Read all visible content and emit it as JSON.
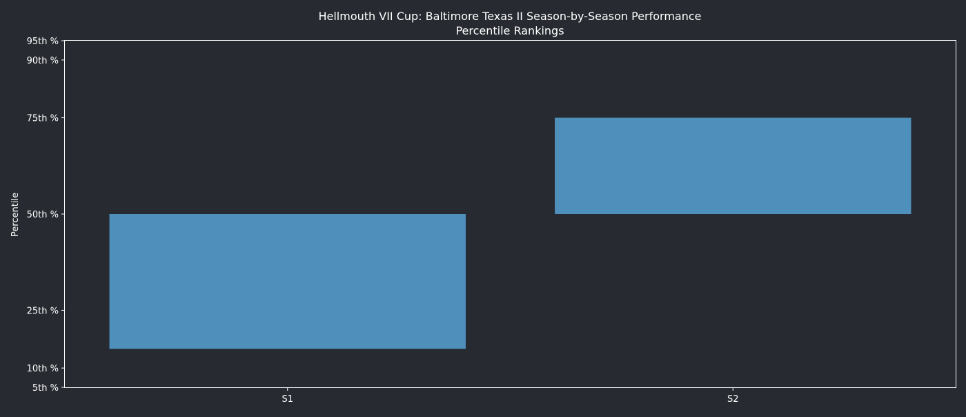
{
  "chart_data": {
    "type": "bar",
    "title": "Hellmouth VII Cup: Baltimore Texas II Season-by-Season Performance",
    "subtitle": "Percentile Rankings",
    "xlabel": "",
    "ylabel": "Percentile",
    "categories": [
      "S1",
      "S2"
    ],
    "series": [
      {
        "ranges": [
          {
            "low": 15,
            "high": 50
          },
          {
            "low": 50,
            "high": 75
          }
        ]
      }
    ],
    "yticks": [
      {
        "value": 5,
        "label": "5th %"
      },
      {
        "value": 10,
        "label": "10th %"
      },
      {
        "value": 25,
        "label": "25th %"
      },
      {
        "value": 50,
        "label": "50th %"
      },
      {
        "value": 75,
        "label": "75th %"
      },
      {
        "value": 90,
        "label": "90th %"
      },
      {
        "value": 95,
        "label": "95th %"
      }
    ],
    "ylim": [
      5,
      95
    ],
    "grid": false,
    "colors": {
      "background": "#272a30",
      "bar": "#4f8fbb",
      "axis": "#ffffff",
      "text": "#ffffff"
    }
  }
}
